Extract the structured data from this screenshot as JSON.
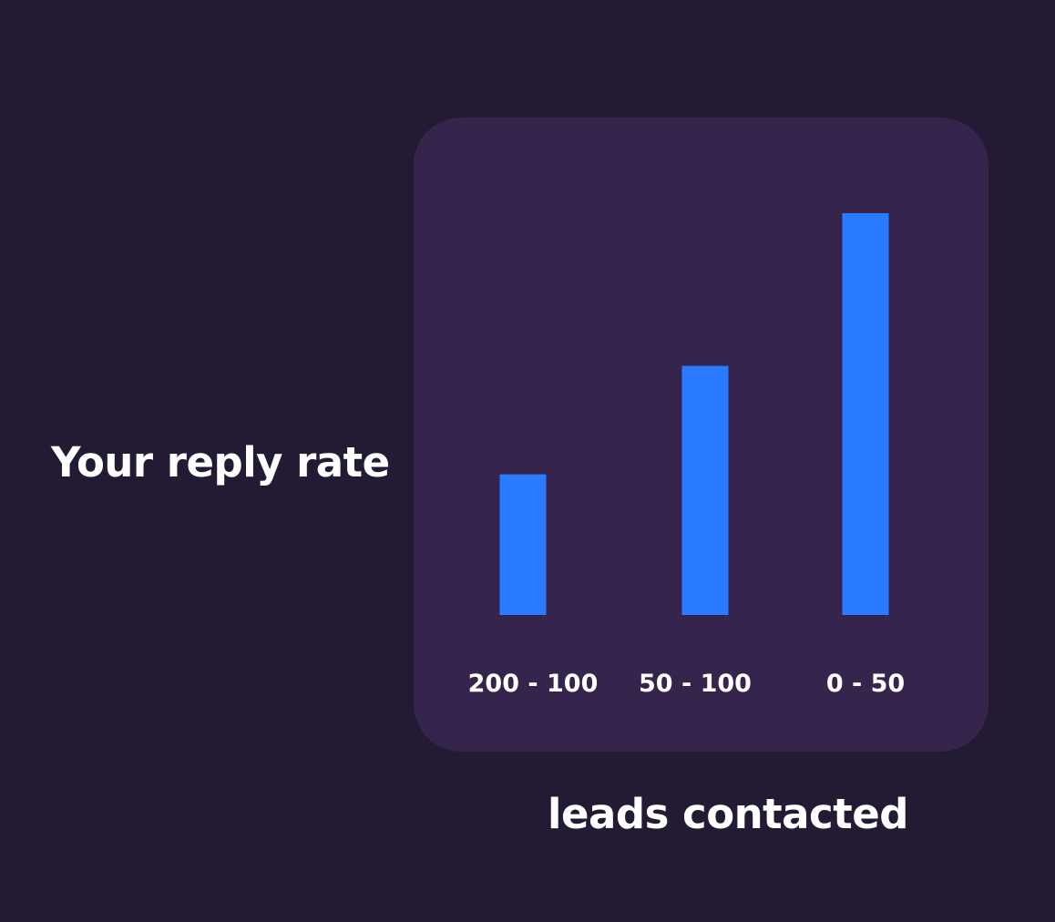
{
  "chart_data": {
    "type": "bar",
    "categories": [
      "200 - 100",
      "50 - 100",
      "0 - 50"
    ],
    "values": [
      35,
      62,
      100
    ],
    "ylabel": "Your reply rate",
    "xlabel": "leads contacted",
    "ylim": [
      0,
      100
    ],
    "grid": false,
    "bar_color": "#2a7bff",
    "panel_color": "#35254d",
    "background_color": "#231a33"
  }
}
